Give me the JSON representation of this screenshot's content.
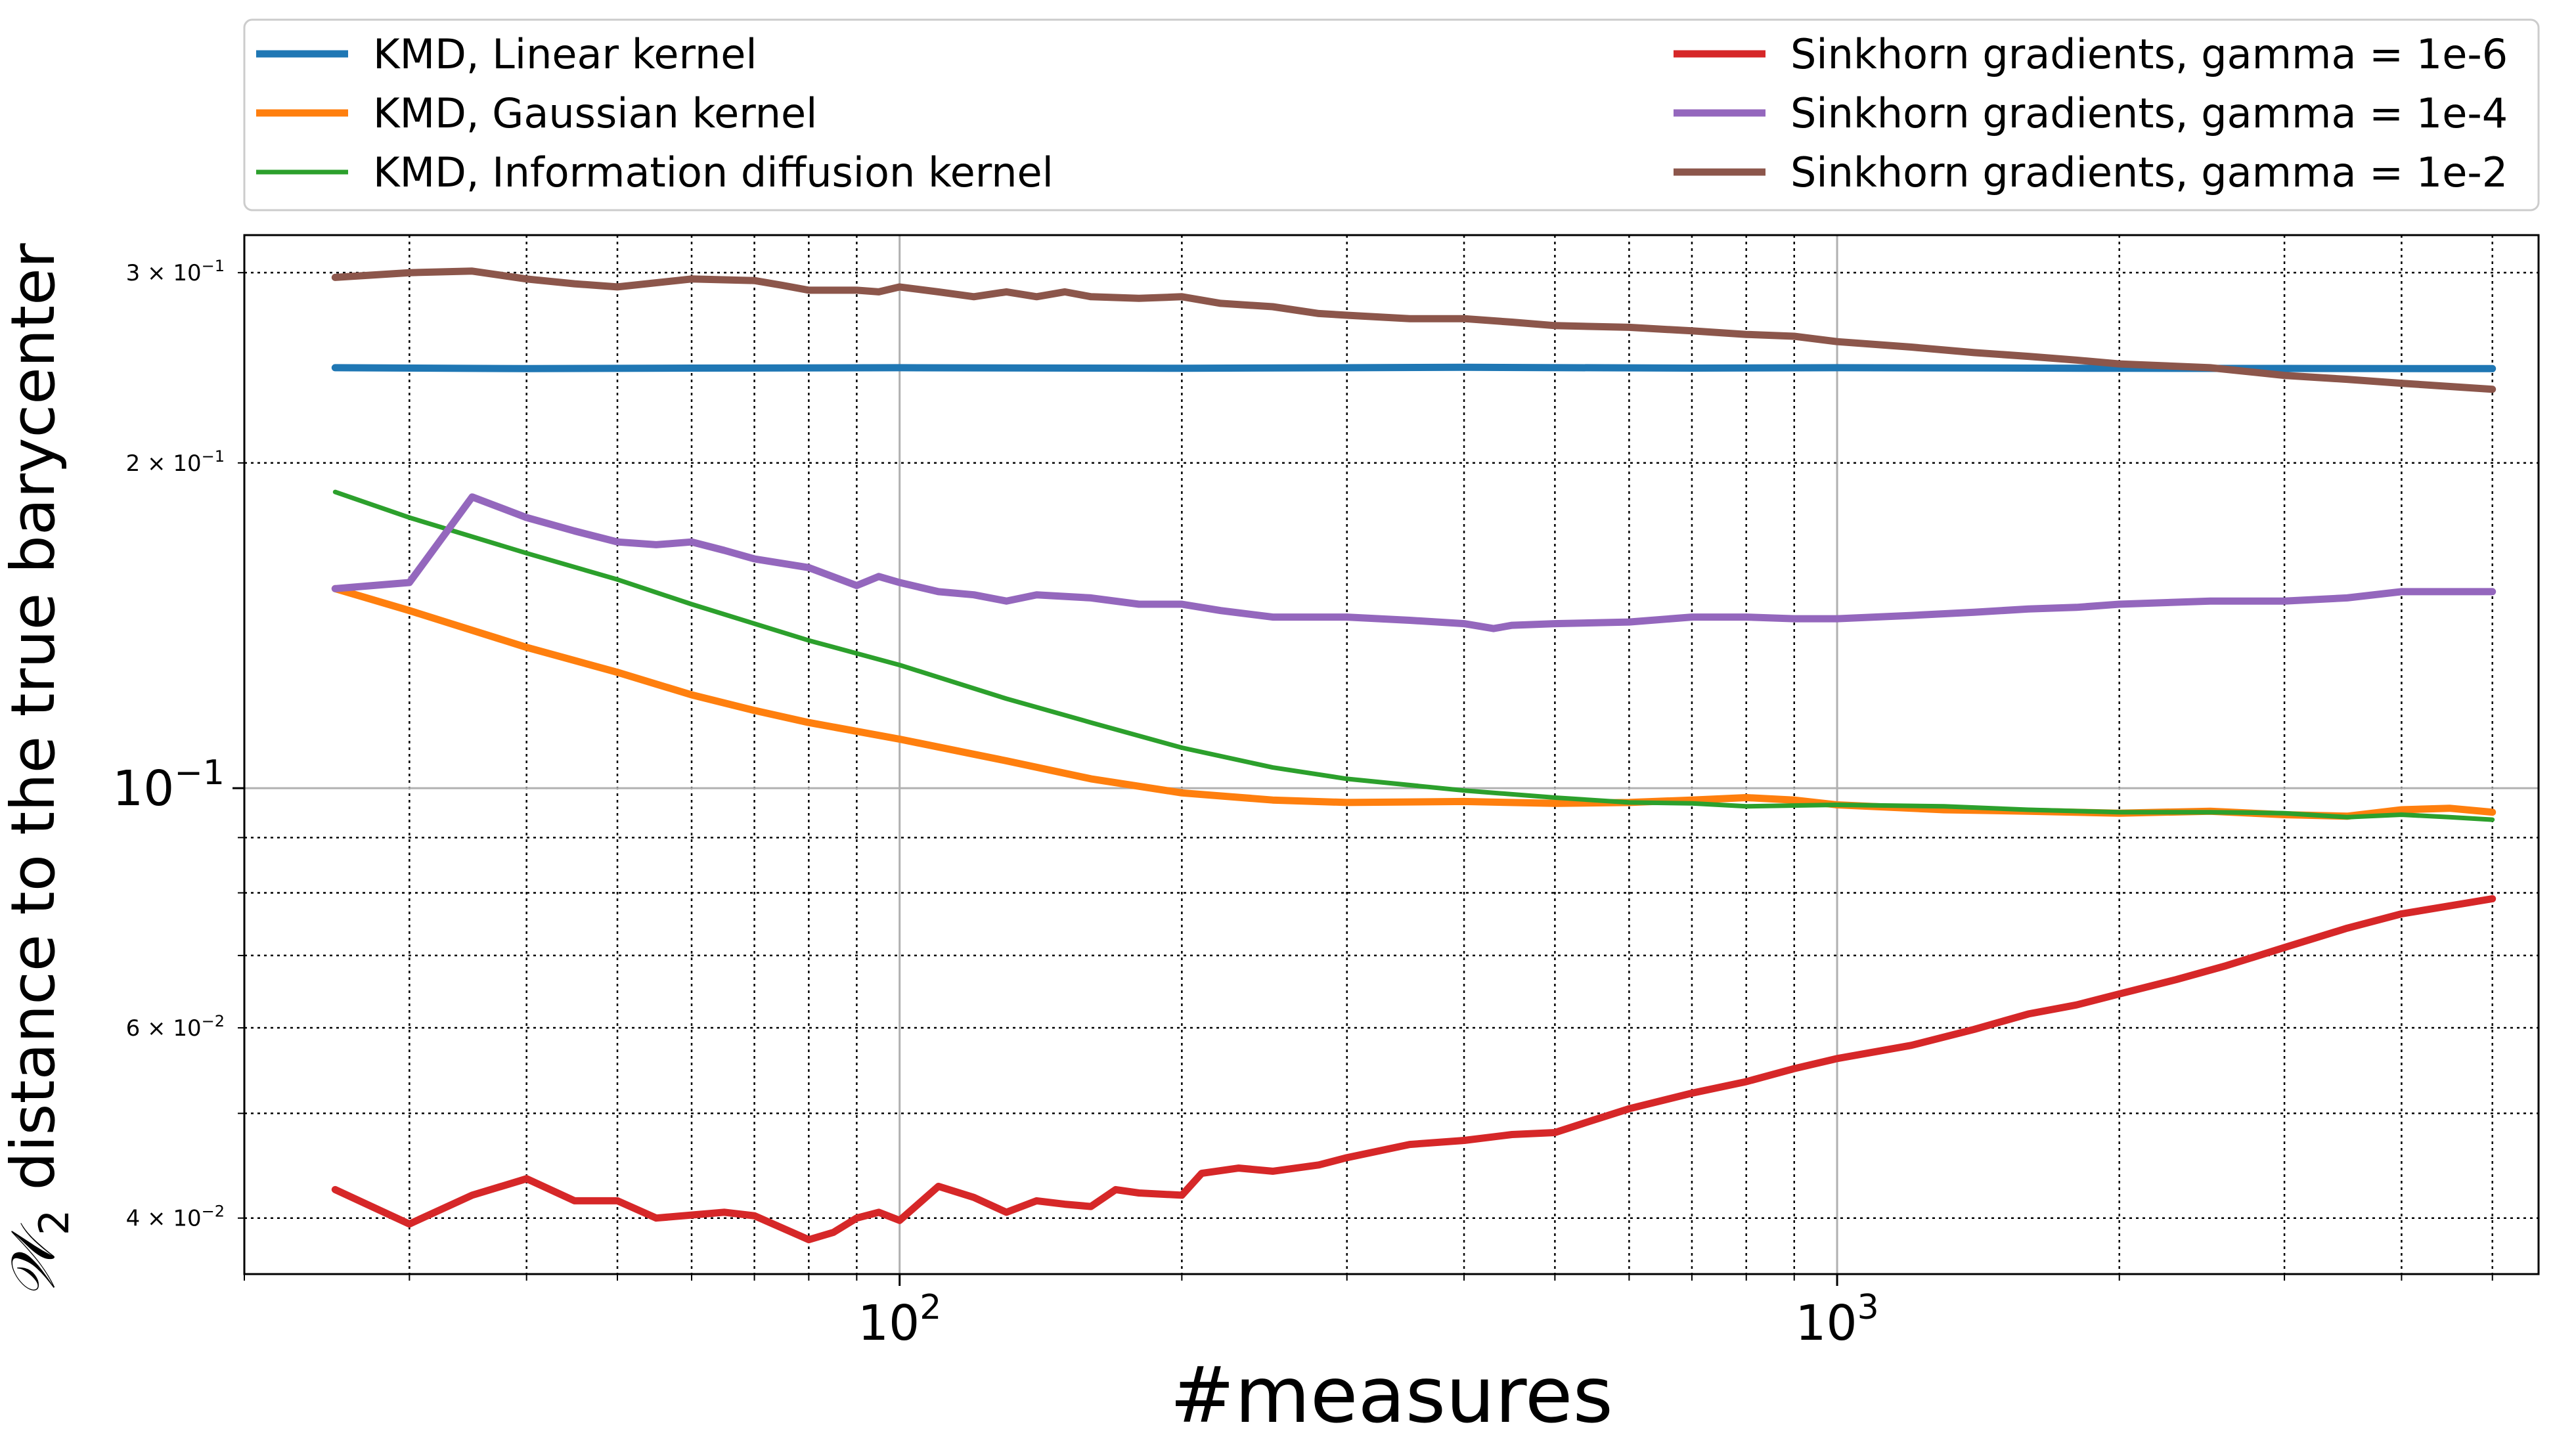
{
  "chart_data": {
    "type": "line",
    "xlabel": "#measures",
    "ylabel": "distance to the true barycenter",
    "ylabel_math": "𝒲",
    "ylabel_sub": "2",
    "xscale": "log",
    "yscale": "log",
    "xlim": [
      20,
      5600
    ],
    "ylim": [
      0.0355,
      0.325
    ],
    "grid": true,
    "legend_position": "top, above plot (two columns)",
    "x_ticks": [
      {
        "value": 100,
        "base": "10",
        "exp": "2"
      },
      {
        "value": 1000,
        "base": "10",
        "exp": "3"
      }
    ],
    "y_ticks": [
      {
        "value": 0.04,
        "label": "4 × 10",
        "exp": "−2",
        "major": false
      },
      {
        "value": 0.06,
        "label": "6 × 10",
        "exp": "−2",
        "major": false
      },
      {
        "value": 0.1,
        "label": "10",
        "exp": "−1",
        "major": true
      },
      {
        "value": 0.2,
        "label": "2 × 10",
        "exp": "−1",
        "major": false
      },
      {
        "value": 0.3,
        "label": "3 × 10",
        "exp": "−1",
        "major": false
      }
    ],
    "series": [
      {
        "name": "KMD, Linear kernel",
        "color": "#1f77b4",
        "width": 11,
        "legend_col": 0,
        "points": [
          [
            25,
            0.245
          ],
          [
            40,
            0.2445
          ],
          [
            60,
            0.2448
          ],
          [
            100,
            0.245
          ],
          [
            200,
            0.2447
          ],
          [
            400,
            0.2452
          ],
          [
            700,
            0.2448
          ],
          [
            1000,
            0.245
          ],
          [
            2000,
            0.2447
          ],
          [
            3000,
            0.2446
          ],
          [
            5000,
            0.2445
          ]
        ]
      },
      {
        "name": "KMD, Gaussian kernel",
        "color": "#ff7f0e",
        "width": 11,
        "legend_col": 0,
        "points": [
          [
            25,
            0.153
          ],
          [
            30,
            0.146
          ],
          [
            35,
            0.14
          ],
          [
            40,
            0.135
          ],
          [
            50,
            0.128
          ],
          [
            60,
            0.122
          ],
          [
            70,
            0.118
          ],
          [
            80,
            0.115
          ],
          [
            100,
            0.111
          ],
          [
            130,
            0.106
          ],
          [
            160,
            0.102
          ],
          [
            200,
            0.099
          ],
          [
            250,
            0.0975
          ],
          [
            300,
            0.097
          ],
          [
            400,
            0.0972
          ],
          [
            500,
            0.0968
          ],
          [
            600,
            0.097
          ],
          [
            700,
            0.0975
          ],
          [
            800,
            0.098
          ],
          [
            900,
            0.0975
          ],
          [
            1000,
            0.0965
          ],
          [
            1300,
            0.0955
          ],
          [
            1600,
            0.0952
          ],
          [
            2000,
            0.0948
          ],
          [
            2500,
            0.0952
          ],
          [
            3000,
            0.0945
          ],
          [
            3500,
            0.0942
          ],
          [
            4000,
            0.0955
          ],
          [
            4500,
            0.0958
          ],
          [
            5000,
            0.095
          ]
        ]
      },
      {
        "name": "KMD, Information diffusion kernel",
        "color": "#2ca02c",
        "width": 7,
        "legend_col": 0,
        "points": [
          [
            25,
            0.188
          ],
          [
            30,
            0.178
          ],
          [
            40,
            0.165
          ],
          [
            50,
            0.156
          ],
          [
            60,
            0.148
          ],
          [
            70,
            0.142
          ],
          [
            80,
            0.137
          ],
          [
            100,
            0.13
          ],
          [
            130,
            0.121
          ],
          [
            160,
            0.115
          ],
          [
            200,
            0.109
          ],
          [
            250,
            0.1045
          ],
          [
            300,
            0.102
          ],
          [
            400,
            0.0995
          ],
          [
            500,
            0.098
          ],
          [
            600,
            0.097
          ],
          [
            700,
            0.0968
          ],
          [
            800,
            0.0962
          ],
          [
            1000,
            0.0965
          ],
          [
            1300,
            0.0962
          ],
          [
            1600,
            0.0955
          ],
          [
            2000,
            0.095
          ],
          [
            2500,
            0.095
          ],
          [
            3000,
            0.0948
          ],
          [
            3500,
            0.094
          ],
          [
            4000,
            0.0945
          ],
          [
            4500,
            0.094
          ],
          [
            5000,
            0.0935
          ]
        ]
      },
      {
        "name": "Sinkhorn gradients, gamma = 1e-6",
        "color": "#d62728",
        "width": 11,
        "legend_col": 1,
        "points": [
          [
            25,
            0.0425
          ],
          [
            30,
            0.0395
          ],
          [
            35,
            0.042
          ],
          [
            40,
            0.0435
          ],
          [
            45,
            0.0415
          ],
          [
            50,
            0.0415
          ],
          [
            55,
            0.04
          ],
          [
            65,
            0.0405
          ],
          [
            70,
            0.0402
          ],
          [
            80,
            0.0382
          ],
          [
            85,
            0.0388
          ],
          [
            90,
            0.04
          ],
          [
            95,
            0.0405
          ],
          [
            100,
            0.0398
          ],
          [
            110,
            0.0428
          ],
          [
            120,
            0.0418
          ],
          [
            130,
            0.0405
          ],
          [
            140,
            0.0415
          ],
          [
            150,
            0.0412
          ],
          [
            160,
            0.041
          ],
          [
            170,
            0.0425
          ],
          [
            180,
            0.0422
          ],
          [
            200,
            0.042
          ],
          [
            210,
            0.044
          ],
          [
            230,
            0.0445
          ],
          [
            250,
            0.0442
          ],
          [
            280,
            0.0448
          ],
          [
            300,
            0.0455
          ],
          [
            350,
            0.0468
          ],
          [
            400,
            0.0472
          ],
          [
            450,
            0.0478
          ],
          [
            500,
            0.048
          ],
          [
            550,
            0.0493
          ],
          [
            600,
            0.0505
          ],
          [
            700,
            0.0522
          ],
          [
            800,
            0.0535
          ],
          [
            900,
            0.055
          ],
          [
            1000,
            0.0562
          ],
          [
            1200,
            0.0578
          ],
          [
            1400,
            0.0598
          ],
          [
            1600,
            0.0618
          ],
          [
            1800,
            0.063
          ],
          [
            2000,
            0.0645
          ],
          [
            2300,
            0.0665
          ],
          [
            2600,
            0.0685
          ],
          [
            3000,
            0.0712
          ],
          [
            3500,
            0.0742
          ],
          [
            4000,
            0.0765
          ],
          [
            5000,
            0.079
          ]
        ]
      },
      {
        "name": "Sinkhorn gradients, gamma = 1e-4",
        "color": "#9467bd",
        "width": 11,
        "legend_col": 1,
        "points": [
          [
            25,
            0.153
          ],
          [
            30,
            0.155
          ],
          [
            35,
            0.186
          ],
          [
            40,
            0.178
          ],
          [
            45,
            0.173
          ],
          [
            50,
            0.169
          ],
          [
            55,
            0.168
          ],
          [
            60,
            0.169
          ],
          [
            65,
            0.166
          ],
          [
            70,
            0.163
          ],
          [
            80,
            0.16
          ],
          [
            90,
            0.154
          ],
          [
            95,
            0.157
          ],
          [
            100,
            0.155
          ],
          [
            110,
            0.152
          ],
          [
            120,
            0.151
          ],
          [
            130,
            0.149
          ],
          [
            140,
            0.151
          ],
          [
            160,
            0.15
          ],
          [
            180,
            0.148
          ],
          [
            200,
            0.148
          ],
          [
            220,
            0.146
          ],
          [
            250,
            0.144
          ],
          [
            300,
            0.144
          ],
          [
            350,
            0.143
          ],
          [
            400,
            0.142
          ],
          [
            430,
            0.1405
          ],
          [
            450,
            0.1415
          ],
          [
            500,
            0.142
          ],
          [
            600,
            0.1425
          ],
          [
            700,
            0.144
          ],
          [
            800,
            0.144
          ],
          [
            900,
            0.1435
          ],
          [
            1000,
            0.1435
          ],
          [
            1200,
            0.1445
          ],
          [
            1400,
            0.1455
          ],
          [
            1600,
            0.1465
          ],
          [
            1800,
            0.147
          ],
          [
            2000,
            0.148
          ],
          [
            2500,
            0.149
          ],
          [
            3000,
            0.149
          ],
          [
            3500,
            0.15
          ],
          [
            4000,
            0.152
          ],
          [
            5000,
            0.152
          ]
        ]
      },
      {
        "name": "Sinkhorn gradients, gamma = 1e-2",
        "color": "#8c564b",
        "width": 11,
        "legend_col": 1,
        "points": [
          [
            25,
            0.297
          ],
          [
            30,
            0.3
          ],
          [
            35,
            0.301
          ],
          [
            40,
            0.296
          ],
          [
            45,
            0.293
          ],
          [
            50,
            0.291
          ],
          [
            60,
            0.296
          ],
          [
            70,
            0.295
          ],
          [
            75,
            0.292
          ],
          [
            80,
            0.289
          ],
          [
            90,
            0.289
          ],
          [
            95,
            0.288
          ],
          [
            100,
            0.291
          ],
          [
            110,
            0.288
          ],
          [
            120,
            0.285
          ],
          [
            130,
            0.288
          ],
          [
            140,
            0.285
          ],
          [
            150,
            0.288
          ],
          [
            160,
            0.285
          ],
          [
            180,
            0.284
          ],
          [
            200,
            0.285
          ],
          [
            220,
            0.281
          ],
          [
            250,
            0.279
          ],
          [
            280,
            0.275
          ],
          [
            300,
            0.274
          ],
          [
            350,
            0.272
          ],
          [
            400,
            0.272
          ],
          [
            450,
            0.27
          ],
          [
            500,
            0.268
          ],
          [
            600,
            0.267
          ],
          [
            700,
            0.265
          ],
          [
            800,
            0.263
          ],
          [
            900,
            0.262
          ],
          [
            1000,
            0.259
          ],
          [
            1200,
            0.256
          ],
          [
            1400,
            0.253
          ],
          [
            1600,
            0.251
          ],
          [
            1800,
            0.249
          ],
          [
            2000,
            0.247
          ],
          [
            2500,
            0.245
          ],
          [
            3000,
            0.241
          ],
          [
            3500,
            0.239
          ],
          [
            4000,
            0.237
          ],
          [
            5000,
            0.234
          ]
        ]
      }
    ]
  }
}
